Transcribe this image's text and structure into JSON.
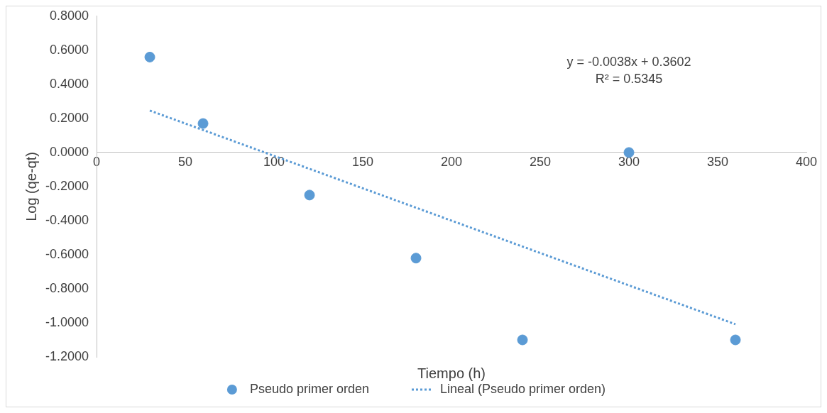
{
  "chart_data": {
    "type": "scatter",
    "xlabel": "Tiempo (h)",
    "ylabel": "Log (qe-qt)",
    "xlim": [
      0,
      400
    ],
    "xticks": [
      0,
      50,
      100,
      150,
      200,
      250,
      300,
      350,
      400
    ],
    "ylim": [
      -1.2,
      0.8
    ],
    "yticks": [
      {
        "value": -1.2,
        "label": "-1.2000"
      },
      {
        "value": -1,
        "label": "-1.0000"
      },
      {
        "value": -0.8,
        "label": "-0.8000"
      },
      {
        "value": -0.6,
        "label": "-0.6000"
      },
      {
        "value": -0.4,
        "label": "-0.4000"
      },
      {
        "value": -0.2,
        "label": "-0.2000"
      },
      {
        "value": 0,
        "label": "0.0000"
      },
      {
        "value": 0.2,
        "label": "0.2000"
      },
      {
        "value": 0.4,
        "label": "0.4000"
      },
      {
        "value": 0.6,
        "label": "0.6000"
      },
      {
        "value": 0.8,
        "label": "0.8000"
      }
    ],
    "series": [
      {
        "name": "Pseudo primer orden",
        "type": "scatter",
        "marker": "circle",
        "color": "#5b9bd5",
        "x": [
          30,
          60,
          120,
          180,
          240,
          300,
          360
        ],
        "values": [
          0.56,
          0.17,
          -0.25,
          -0.62,
          -1.1,
          0.0,
          -1.1
        ]
      },
      {
        "name": "Lineal (Pseudo primer orden)",
        "type": "line",
        "line_style": "dotted",
        "color": "#5b9bd5",
        "x": [
          30,
          360
        ],
        "values": [
          0.246,
          -1.008
        ]
      }
    ],
    "annotations": [
      "y = -0.0038x + 0.3602",
      "R² = 0.5345"
    ],
    "grid": false,
    "legend": "bottom"
  }
}
